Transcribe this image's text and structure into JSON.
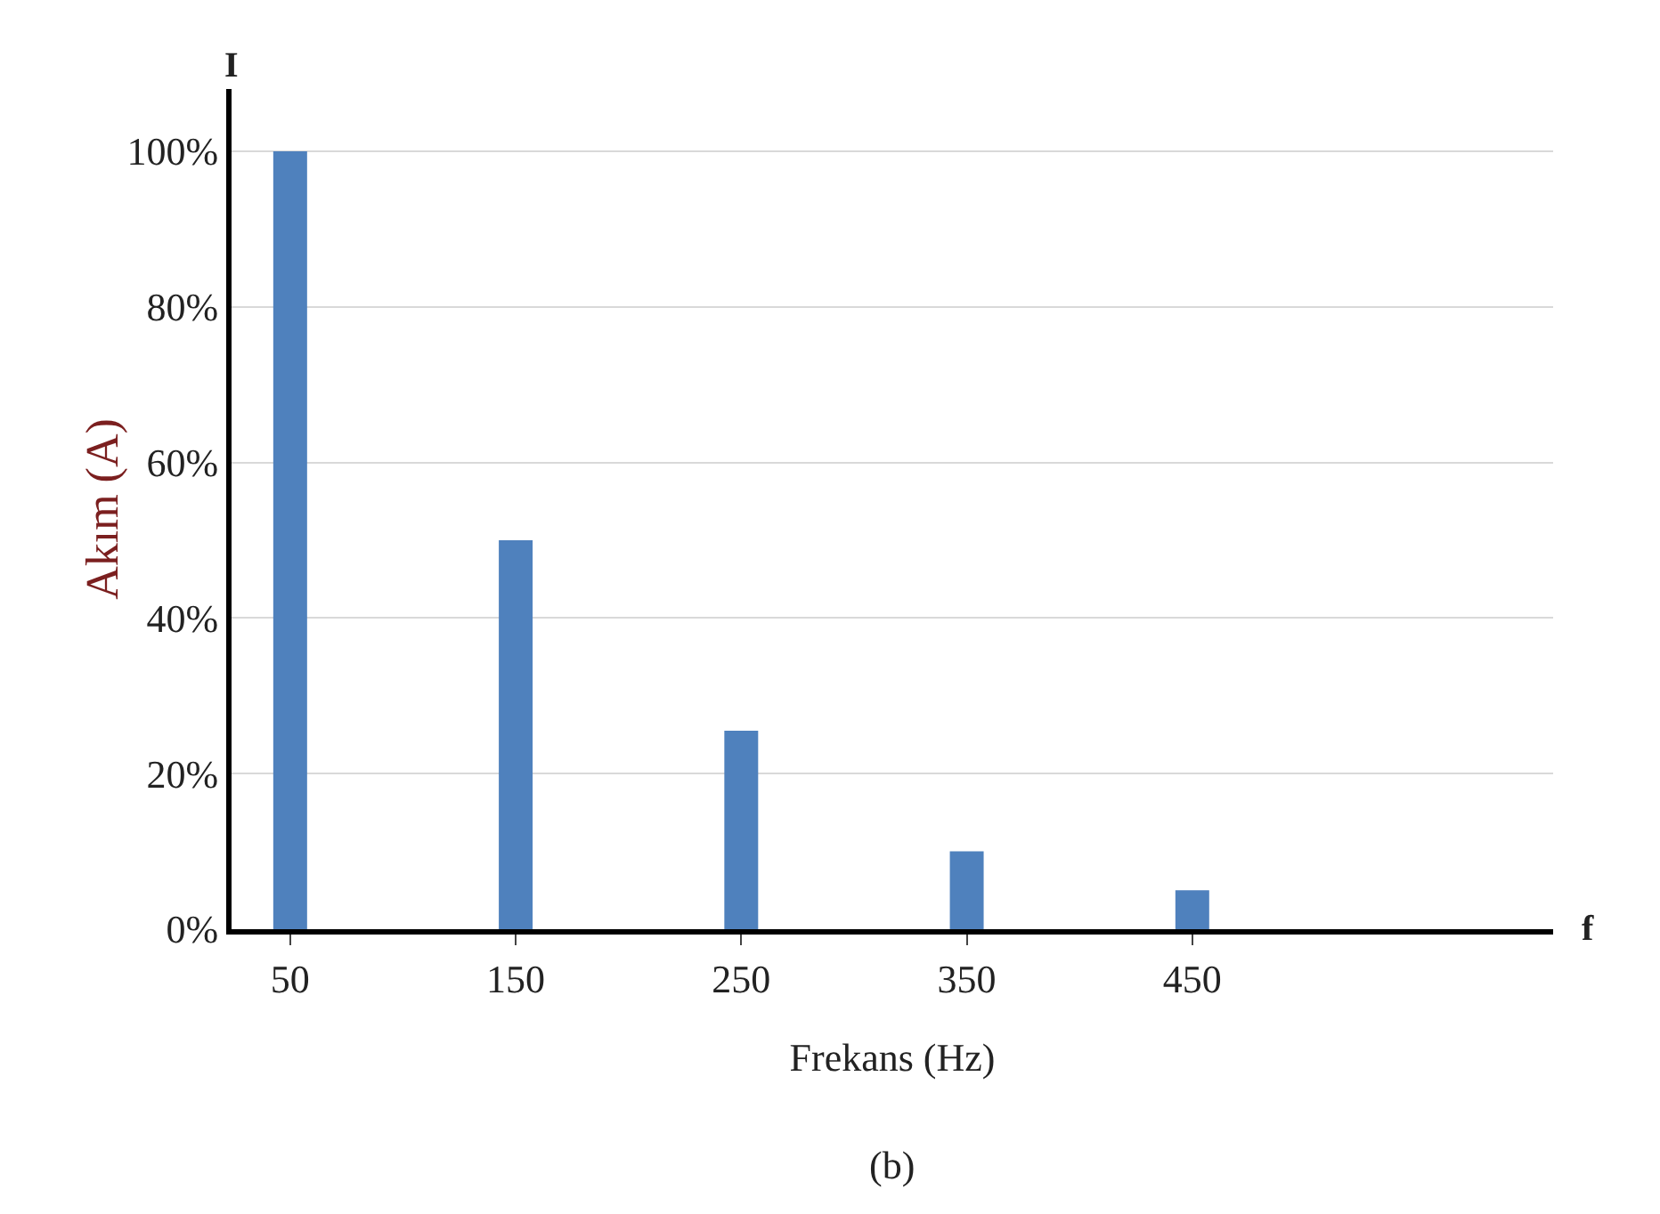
{
  "chart_data": {
    "type": "bar",
    "xlabel": "Frekans (Hz)",
    "ylabel": "Akım (A)",
    "x": [
      50,
      150,
      250,
      350,
      450
    ],
    "values": [
      100,
      50,
      25.5,
      10,
      5
    ],
    "color": "#4f81bd",
    "xlim": [
      24,
      610
    ],
    "xticks": [
      50,
      150,
      250,
      350,
      450
    ],
    "ylim": [
      0,
      108
    ],
    "yticks": [
      {
        "value": 0,
        "label": "0%"
      },
      {
        "value": 20,
        "label": "20%"
      },
      {
        "value": 40,
        "label": "40%"
      },
      {
        "value": 60,
        "label": "60%"
      },
      {
        "value": 80,
        "label": "80%"
      },
      {
        "value": 100,
        "label": "100%"
      }
    ],
    "grid": "y",
    "annotations": [
      {
        "text": "I"
      },
      {
        "text": "f"
      },
      {
        "text": "(b)"
      }
    ]
  }
}
